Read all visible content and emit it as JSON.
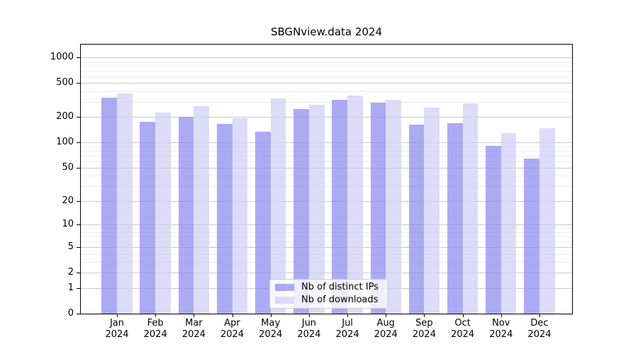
{
  "figure": {
    "title": "SBGNview.data 2024"
  },
  "y_axis": {
    "tick_labels": [
      "1000",
      "500",
      "200",
      "100",
      "50",
      "20",
      "10",
      "5",
      "2",
      "1",
      "0"
    ]
  },
  "x_axis": {
    "months": [
      "Jan",
      "Feb",
      "Mar",
      "Apr",
      "May",
      "Jun",
      "Jul",
      "Aug",
      "Sep",
      "Oct",
      "Nov",
      "Dec"
    ],
    "year": "2024"
  },
  "legend": {
    "items": [
      {
        "label": "Nb of distinct IPs",
        "series": "distinct-ips",
        "color": "rgba(138,138,238,0.72)",
        "hex_over_white": "#ababf3"
      },
      {
        "label": "Nb of downloads",
        "series": "downloads",
        "color": "rgba(206,206,245,0.72)",
        "hex_over_white": "#dcdcf8"
      }
    ]
  },
  "chart_data": {
    "type": "bar",
    "title": "SBGNview.data 2024",
    "categories": [
      "Jan 2024",
      "Feb 2024",
      "Mar 2024",
      "Apr 2024",
      "May 2024",
      "Jun 2024",
      "Jul 2024",
      "Aug 2024",
      "Sep 2024",
      "Oct 2024",
      "Nov 2024",
      "Dec 2024"
    ],
    "series": [
      {
        "name": "Nb of distinct IPs",
        "values": [
          335,
          176,
          201,
          165,
          134,
          250,
          321,
          297,
          162,
          170,
          91,
          64
        ]
      },
      {
        "name": "Nb of downloads",
        "values": [
          380,
          227,
          266,
          193,
          333,
          277,
          355,
          316,
          258,
          290,
          130,
          148
        ]
      }
    ],
    "xlabel": "",
    "ylabel": "",
    "yscale": "log10(y+1)",
    "yticks": [
      0,
      1,
      2,
      5,
      10,
      20,
      50,
      100,
      200,
      500,
      1000
    ],
    "yticks_minor": [
      3,
      4,
      6,
      7,
      8,
      9,
      30,
      40,
      60,
      70,
      80,
      90,
      300,
      400,
      600,
      700,
      800,
      900
    ],
    "ylim": [
      0,
      1430
    ],
    "grid": "horizontal major+minor",
    "legend_position": "lower center",
    "colors": {
      "distinct_ips": "#ababf3",
      "downloads": "#dcdcf8",
      "gridline_major": "#c8c8c8",
      "gridline_minor": "#ececec",
      "axis": "#000000"
    }
  }
}
